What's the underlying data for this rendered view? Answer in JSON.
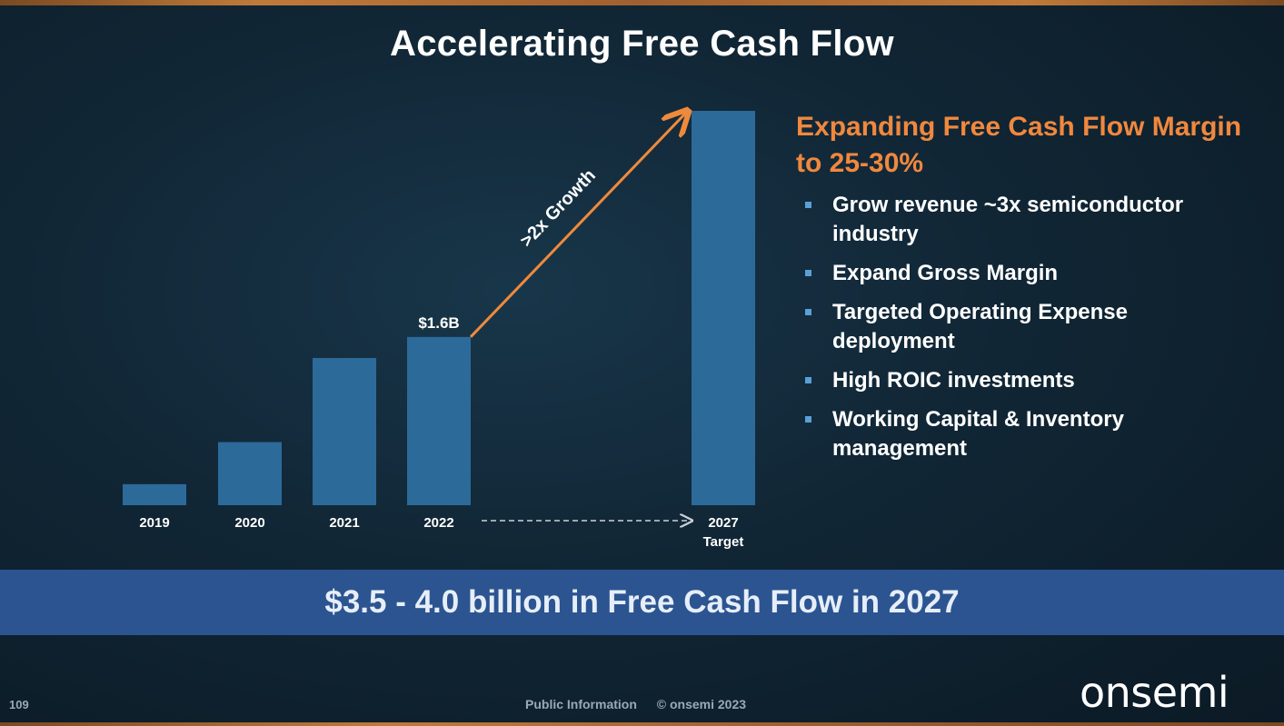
{
  "slide": {
    "title": "Accelerating Free Cash Flow",
    "page_number": "109",
    "footer_label": "Public Information",
    "copyright": "© onsemi 2023",
    "logo_text": "onsemi"
  },
  "panel": {
    "heading": "Expanding Free Cash Flow Margin to 25-30%",
    "bullets": [
      "Grow revenue ~3x semiconductor industry",
      "Expand Gross Margin",
      "Targeted Operating Expense deployment",
      "High ROIC investments",
      "Working Capital & Inventory management"
    ]
  },
  "banner": {
    "text": "$3.5 - 4.0 billion in Free Cash Flow in 2027"
  },
  "chart_data": {
    "type": "bar",
    "categories": [
      "2019",
      "2020",
      "2021",
      "2022",
      "2027"
    ],
    "category_sublabels": [
      "",
      "",
      "",
      "",
      "Target"
    ],
    "values": [
      0.2,
      0.6,
      1.4,
      1.6,
      3.75
    ],
    "unit": "$B",
    "data_labels": [
      "",
      "",
      "",
      "$1.6B",
      ""
    ],
    "annotation": ">2x Growth",
    "ylim": [
      0,
      4.0
    ],
    "grid": false,
    "legend": "none",
    "bar_color": "#2c6a9a",
    "arrow_color": "#ef8a3c"
  }
}
